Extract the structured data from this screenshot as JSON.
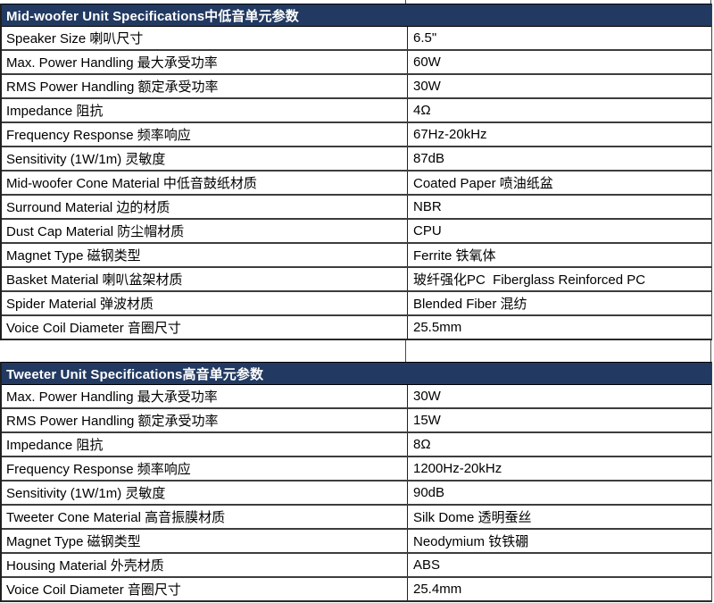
{
  "colors": {
    "header_bg": "#223A62",
    "header_text": "#FFFFFF",
    "grid_line": "#3D3D3D",
    "cell_bg": "#FFFFFF",
    "cell_text": "#000000"
  },
  "tables": [
    {
      "title": "Mid-woofer Unit Specifications中低音单元参数",
      "rows": [
        [
          "Speaker Size 喇叭尺寸",
          "6.5\""
        ],
        [
          "Max. Power Handling 最大承受功率",
          "60W"
        ],
        [
          "RMS Power Handling 额定承受功率",
          "30W"
        ],
        [
          "Impedance 阻抗",
          "4Ω"
        ],
        [
          "Frequency Response 频率响应",
          "67Hz-20kHz"
        ],
        [
          "Sensitivity (1W/1m) 灵敏度",
          "87dB"
        ],
        [
          "Mid-woofer Cone Material 中低音鼓纸材质",
          "Coated Paper 喷油纸盆"
        ],
        [
          "Surround Material 边的材质",
          "NBR"
        ],
        [
          "Dust Cap Material 防尘帽材质",
          "CPU"
        ],
        [
          "Magnet Type 磁钢类型",
          "Ferrite 铁氧体"
        ],
        [
          "Basket Material 喇叭盆架材质",
          "玻纤强化PC  Fiberglass Reinforced PC"
        ],
        [
          "Spider Material 弹波材质",
          "Blended Fiber 混纺"
        ],
        [
          "Voice Coil Diameter 音圈尺寸",
          "25.5mm"
        ]
      ]
    },
    {
      "title": "Tweeter Unit Specifications高音单元参数",
      "rows": [
        [
          "Max. Power Handling 最大承受功率",
          "30W"
        ],
        [
          "RMS Power Handling 额定承受功率",
          "15W"
        ],
        [
          "Impedance 阻抗",
          "8Ω"
        ],
        [
          "Frequency Response 频率响应",
          "1200Hz-20kHz"
        ],
        [
          "Sensitivity (1W/1m) 灵敏度",
          "90dB"
        ],
        [
          "Tweeter Cone Material 高音振膜材质",
          "Silk Dome 透明蚕丝"
        ],
        [
          "Magnet Type 磁钢类型",
          "Neodymium 钕铁硼"
        ],
        [
          "Housing Material 外壳材质",
          "ABS"
        ],
        [
          "Voice Coil Diameter 音圈尺寸",
          "25.4mm"
        ]
      ]
    }
  ]
}
